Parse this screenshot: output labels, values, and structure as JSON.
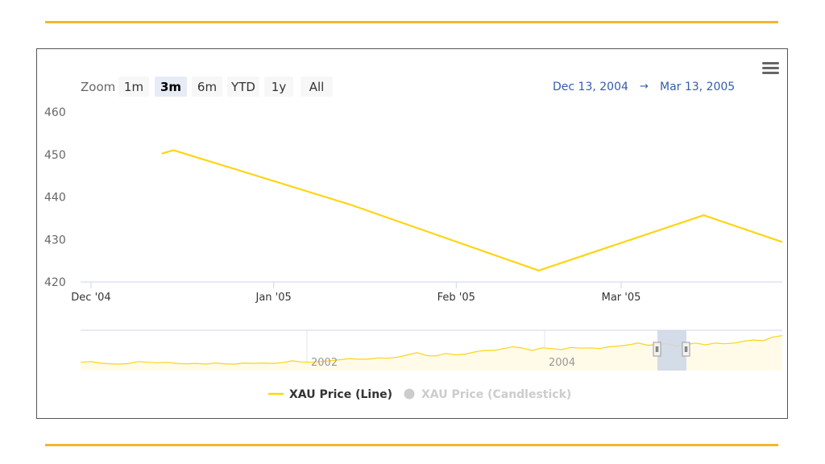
{
  "colors": {
    "rule": "#f2b630",
    "line": "#ffd414",
    "nav_fill": "#fffbe8",
    "nav_mask": "#ccd6e6",
    "grid_axis": "#ccd6eb",
    "legend_inactive": "#cccccc",
    "legend_active": "#333333"
  },
  "menu": {
    "icon": "hamburger-menu-icon"
  },
  "range_selector": {
    "zoom_label": "Zoom",
    "buttons": [
      "1m",
      "3m",
      "6m",
      "YTD",
      "1y",
      "All"
    ],
    "selected": "3m",
    "from": "Dec 13, 2004",
    "arrow": "→",
    "to": "Mar 13, 2005"
  },
  "chart_data": {
    "type": "line",
    "title": "",
    "xlabel": "",
    "ylabel": "",
    "ylim": [
      420,
      460
    ],
    "y_ticks": [
      "460",
      "450",
      "440",
      "430",
      "420"
    ],
    "x_ticks": [
      "Dec '04",
      "Jan '05",
      "Feb '05",
      "Mar '05"
    ],
    "grid": false,
    "legend_position": "bottom-center",
    "series": [
      {
        "name": "XAU Price (Line)",
        "visible": true,
        "x": [
          "2004-12-13",
          "2004-12-15",
          "2005-01-14",
          "2005-02-15",
          "2005-03-15",
          "2005-04-15"
        ],
        "values": [
          450.2,
          451.0,
          438.2,
          422.7,
          435.7,
          429.4
        ]
      },
      {
        "name": "XAU Price (Candlestick)",
        "visible": false,
        "values": []
      }
    ],
    "navigator": {
      "x_ticks": [
        "2002",
        "2004"
      ],
      "selected_range": [
        "Dec 13, 2004",
        "Mar 13, 2005"
      ],
      "series_values": [
        0.18,
        0.2,
        0.16,
        0.14,
        0.13,
        0.15,
        0.2,
        0.18,
        0.17,
        0.18,
        0.15,
        0.14,
        0.15,
        0.13,
        0.16,
        0.14,
        0.13,
        0.16,
        0.15,
        0.16,
        0.15,
        0.17,
        0.22,
        0.19,
        0.18,
        0.2,
        0.22,
        0.25,
        0.28,
        0.26,
        0.27,
        0.3,
        0.29,
        0.32,
        0.38,
        0.44,
        0.36,
        0.35,
        0.42,
        0.38,
        0.4,
        0.46,
        0.5,
        0.5,
        0.55,
        0.6,
        0.56,
        0.5,
        0.57,
        0.55,
        0.52,
        0.58,
        0.56,
        0.57,
        0.55,
        0.6,
        0.62,
        0.65,
        0.7,
        0.64,
        0.66,
        0.68,
        0.62,
        0.66,
        0.7,
        0.65,
        0.7,
        0.68,
        0.7,
        0.75,
        0.78,
        0.76,
        0.86,
        0.9
      ]
    }
  }
}
